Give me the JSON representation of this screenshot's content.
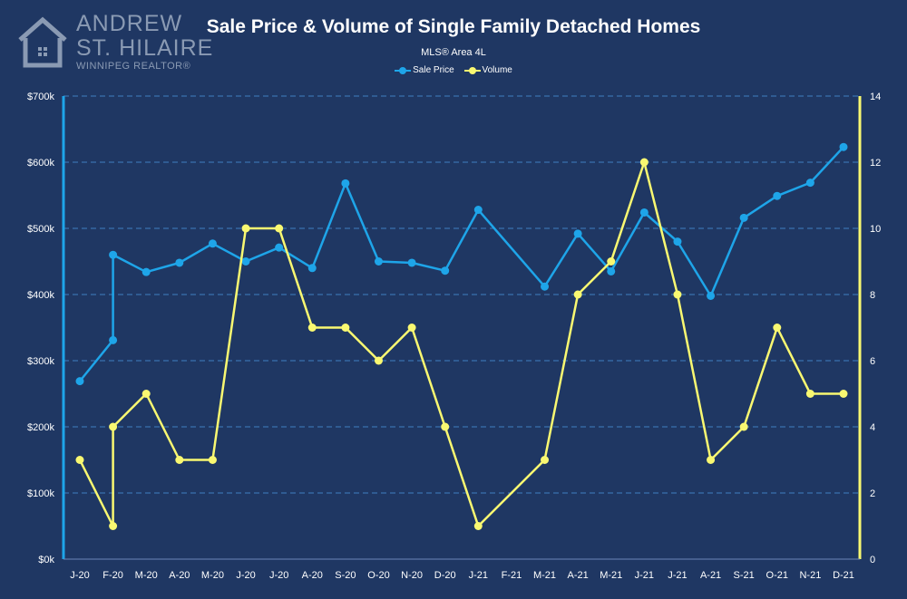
{
  "logo": {
    "line1": "ANDREW",
    "line2": "ST. HILAIRE",
    "line3": "WINNIPEG REALTOR®"
  },
  "chart_data": {
    "type": "line",
    "title": "Sale Price & Volume of Single Family Detached Homes",
    "subtitle": "MLS® Area 4L",
    "categories": [
      "J-20",
      "F-20",
      "F-20",
      "M-20",
      "A-20",
      "M-20",
      "J-20",
      "J-20",
      "A-20",
      "S-20",
      "O-20",
      "N-20",
      "D-20",
      "J-21",
      "F-21",
      "M-21",
      "A-21",
      "M-21",
      "J-21",
      "J-21",
      "A-21",
      "S-21",
      "O-21",
      "N-21",
      "D-21"
    ],
    "x_tick_labels": [
      "J-20",
      "F-20",
      "M-20",
      "A-20",
      "M-20",
      "J-20",
      "J-20",
      "A-20",
      "S-20",
      "O-20",
      "N-20",
      "D-20",
      "J-21",
      "F-21",
      "M-21",
      "A-21",
      "M-21",
      "J-21",
      "J-21",
      "A-21",
      "S-21",
      "O-21",
      "N-21",
      "D-21"
    ],
    "series": [
      {
        "name": "Sale Price",
        "axis": "left",
        "color": "#1ea5e9",
        "values": [
          269000,
          331000,
          460000,
          434000,
          448000,
          477000,
          450000,
          471000,
          440000,
          568000,
          450000,
          448000,
          436000,
          528000,
          null,
          412000,
          492000,
          435000,
          524000,
          480000,
          398000,
          516000,
          549000,
          569000,
          623000
        ]
      },
      {
        "name": "Volume",
        "axis": "right",
        "color": "#f9f871",
        "values": [
          3,
          1,
          4,
          5,
          3,
          3,
          10,
          10,
          7,
          7,
          6,
          7,
          4,
          1,
          null,
          3,
          8,
          9,
          12,
          8,
          3,
          4,
          7,
          5,
          5
        ]
      }
    ],
    "x_positions": [
      0,
      1,
      1,
      2,
      3,
      4,
      5,
      6,
      7,
      8,
      9,
      10,
      11,
      12,
      13,
      14,
      15,
      16,
      17,
      18,
      19,
      20,
      21,
      22,
      23
    ],
    "y_left": {
      "ticks": [
        "$0k",
        "$100k",
        "$200k",
        "$300k",
        "$400k",
        "$500k",
        "$600k",
        "$700k"
      ],
      "lim": [
        0,
        700000
      ]
    },
    "y_right": {
      "ticks": [
        "0",
        "2",
        "4",
        "6",
        "8",
        "10",
        "12",
        "14"
      ],
      "lim": [
        0,
        14
      ]
    },
    "grid": true,
    "legend_position": "top-center",
    "colors": {
      "background": "#1f3763",
      "grid": "#3f7fc2",
      "left_axis": "#1ea5e9",
      "right_axis": "#f9f871",
      "text": "#ffffff"
    }
  }
}
